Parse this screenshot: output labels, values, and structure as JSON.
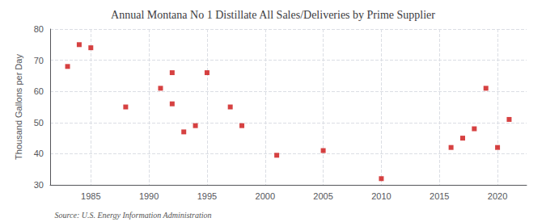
{
  "chart_data": {
    "type": "scatter",
    "title": "Annual Montana No 1 Distillate All Sales/Deliveries by Prime Supplier",
    "ylabel": "Thousand Gallons per Day",
    "annotation": "Source: U.S. Energy Information Administration",
    "x": [
      1983,
      1984,
      1985,
      1988,
      1991,
      1992,
      1992,
      1993,
      1994,
      1995,
      1997,
      1998,
      2001,
      2005,
      2010,
      2016,
      2017,
      2018,
      2019,
      2020,
      2021
    ],
    "values": [
      68,
      75,
      74,
      55,
      61,
      66,
      56,
      47,
      49,
      66,
      55,
      49,
      39.5,
      41,
      32,
      42,
      45,
      48,
      61,
      42,
      51
    ],
    "color": "#cc1111",
    "marker": "square",
    "xlim": [
      1981.5,
      2022.5
    ],
    "xticks": [
      1985,
      1990,
      1995,
      2000,
      2005,
      2010,
      2015,
      2020
    ],
    "ylim": [
      30,
      80
    ],
    "yticks": [
      30,
      40,
      50,
      60,
      70,
      80
    ],
    "grid": true
  }
}
